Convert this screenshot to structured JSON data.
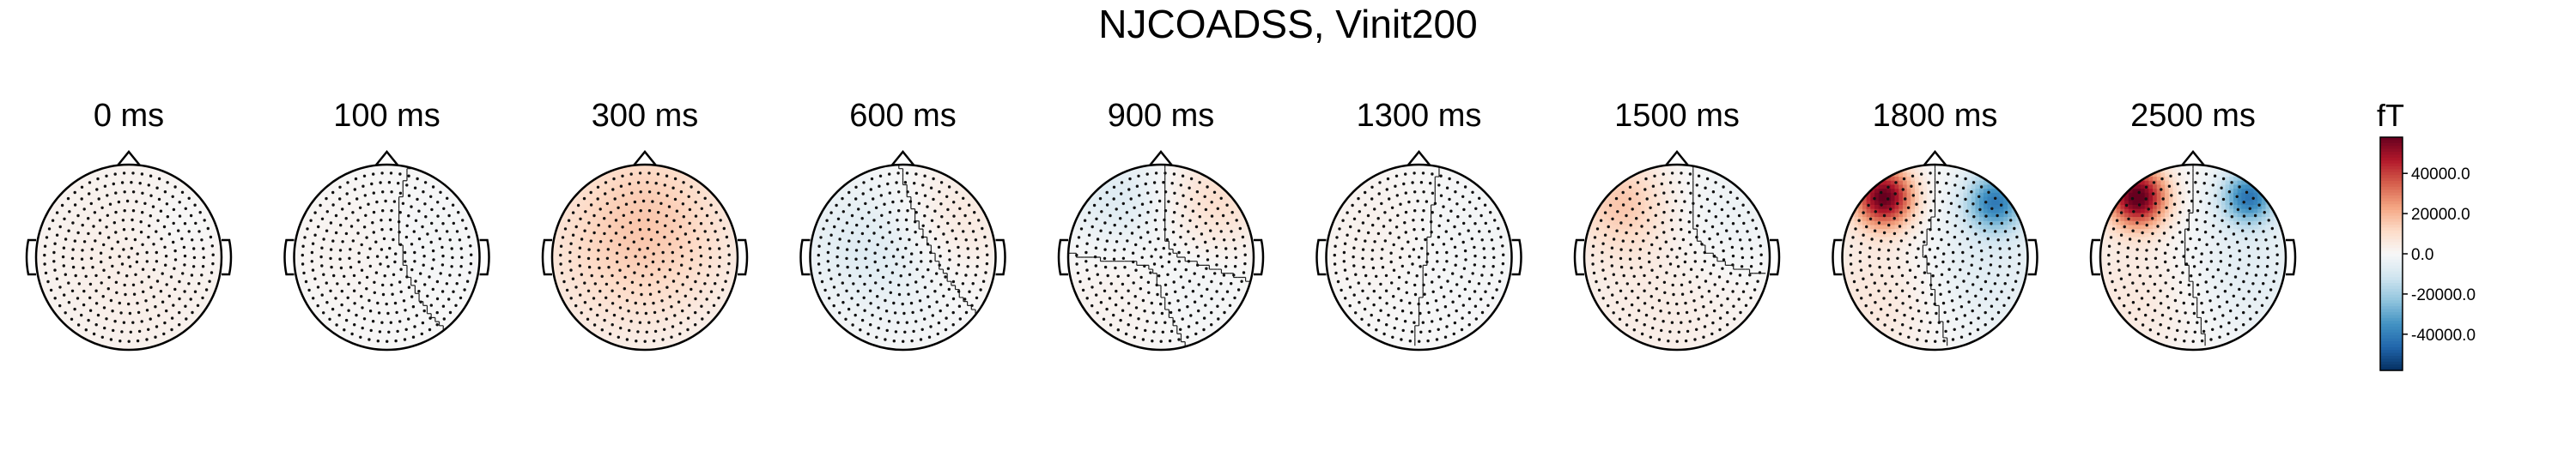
{
  "chart_data": {
    "type": "heatmap",
    "title": "NJCOADSS, Vinit200",
    "colorbar": {
      "unit": "fT",
      "ticks": [
        "40000.0",
        "20000.0",
        "0.0",
        "-20000.0",
        "-40000.0"
      ],
      "tick_values": [
        40000,
        20000,
        0,
        -20000,
        -40000
      ],
      "range": [
        -58000,
        58000
      ],
      "colormap": "RdBu_r",
      "colors": [
        "#053061",
        "#2166ac",
        "#4393c3",
        "#92c5de",
        "#d1e5f0",
        "#f7f7f7",
        "#fddbc7",
        "#f4a582",
        "#d6604d",
        "#b2182b",
        "#67001f"
      ]
    },
    "panels": [
      {
        "title": "0 ms",
        "sources": [
          {
            "x": 0.1,
            "y": -0.1,
            "v": 4000,
            "s": 0.9
          },
          {
            "x": 0.55,
            "y": 0.3,
            "v": -3000,
            "s": 0.35
          }
        ]
      },
      {
        "title": "100 ms",
        "sources": [
          {
            "x": -0.35,
            "y": 0.1,
            "v": 2000,
            "s": 0.5
          },
          {
            "x": 0.4,
            "y": 0.2,
            "v": -1500,
            "s": 0.4
          }
        ]
      },
      {
        "title": "300 ms",
        "sources": [
          {
            "x": 0.0,
            "y": 0.65,
            "v": 10000,
            "s": 0.7
          },
          {
            "x": -0.45,
            "y": -0.1,
            "v": 6000,
            "s": 0.7
          },
          {
            "x": 0.35,
            "y": 0.0,
            "v": 4000,
            "s": 0.6
          }
        ]
      },
      {
        "title": "600 ms",
        "sources": [
          {
            "x": -0.45,
            "y": 0.2,
            "v": -6000,
            "s": 0.5
          },
          {
            "x": 0.55,
            "y": 0.35,
            "v": 7000,
            "s": 0.5
          },
          {
            "x": 0.1,
            "y": -0.1,
            "v": -4000,
            "s": 0.5
          }
        ]
      },
      {
        "title": "900 ms",
        "sources": [
          {
            "x": -0.45,
            "y": 0.6,
            "v": -8000,
            "s": 0.4
          },
          {
            "x": 0.6,
            "y": 0.6,
            "v": 10000,
            "s": 0.4
          },
          {
            "x": 0.3,
            "y": -0.2,
            "v": -3000,
            "s": 0.4
          },
          {
            "x": -0.4,
            "y": -0.3,
            "v": 3000,
            "s": 0.5
          }
        ]
      },
      {
        "title": "1300 ms",
        "sources": [
          {
            "x": -0.4,
            "y": 0.3,
            "v": 3000,
            "s": 0.5
          },
          {
            "x": 0.35,
            "y": 0.2,
            "v": -2000,
            "s": 0.5
          }
        ]
      },
      {
        "title": "1500 ms",
        "sources": [
          {
            "x": -0.6,
            "y": 0.6,
            "v": 14000,
            "s": 0.35
          },
          {
            "x": 0.5,
            "y": 0.4,
            "v": -5000,
            "s": 0.5
          },
          {
            "x": -0.2,
            "y": -0.3,
            "v": 5000,
            "s": 0.8
          }
        ]
      },
      {
        "title": "1800 ms",
        "sources": [
          {
            "x": -0.55,
            "y": 0.65,
            "v": 58000,
            "s": 0.22
          },
          {
            "x": 0.65,
            "y": 0.6,
            "v": -38000,
            "s": 0.22
          },
          {
            "x": -0.45,
            "y": -0.35,
            "v": 9000,
            "s": 0.6
          },
          {
            "x": 0.35,
            "y": -0.15,
            "v": -9000,
            "s": 0.6
          }
        ]
      },
      {
        "title": "2500 ms",
        "sources": [
          {
            "x": -0.6,
            "y": 0.65,
            "v": 60000,
            "s": 0.22
          },
          {
            "x": 0.6,
            "y": 0.65,
            "v": -40000,
            "s": 0.2
          },
          {
            "x": -0.45,
            "y": -0.35,
            "v": 8000,
            "s": 0.6
          },
          {
            "x": 0.4,
            "y": -0.15,
            "v": -8000,
            "s": 0.6
          }
        ]
      }
    ]
  }
}
